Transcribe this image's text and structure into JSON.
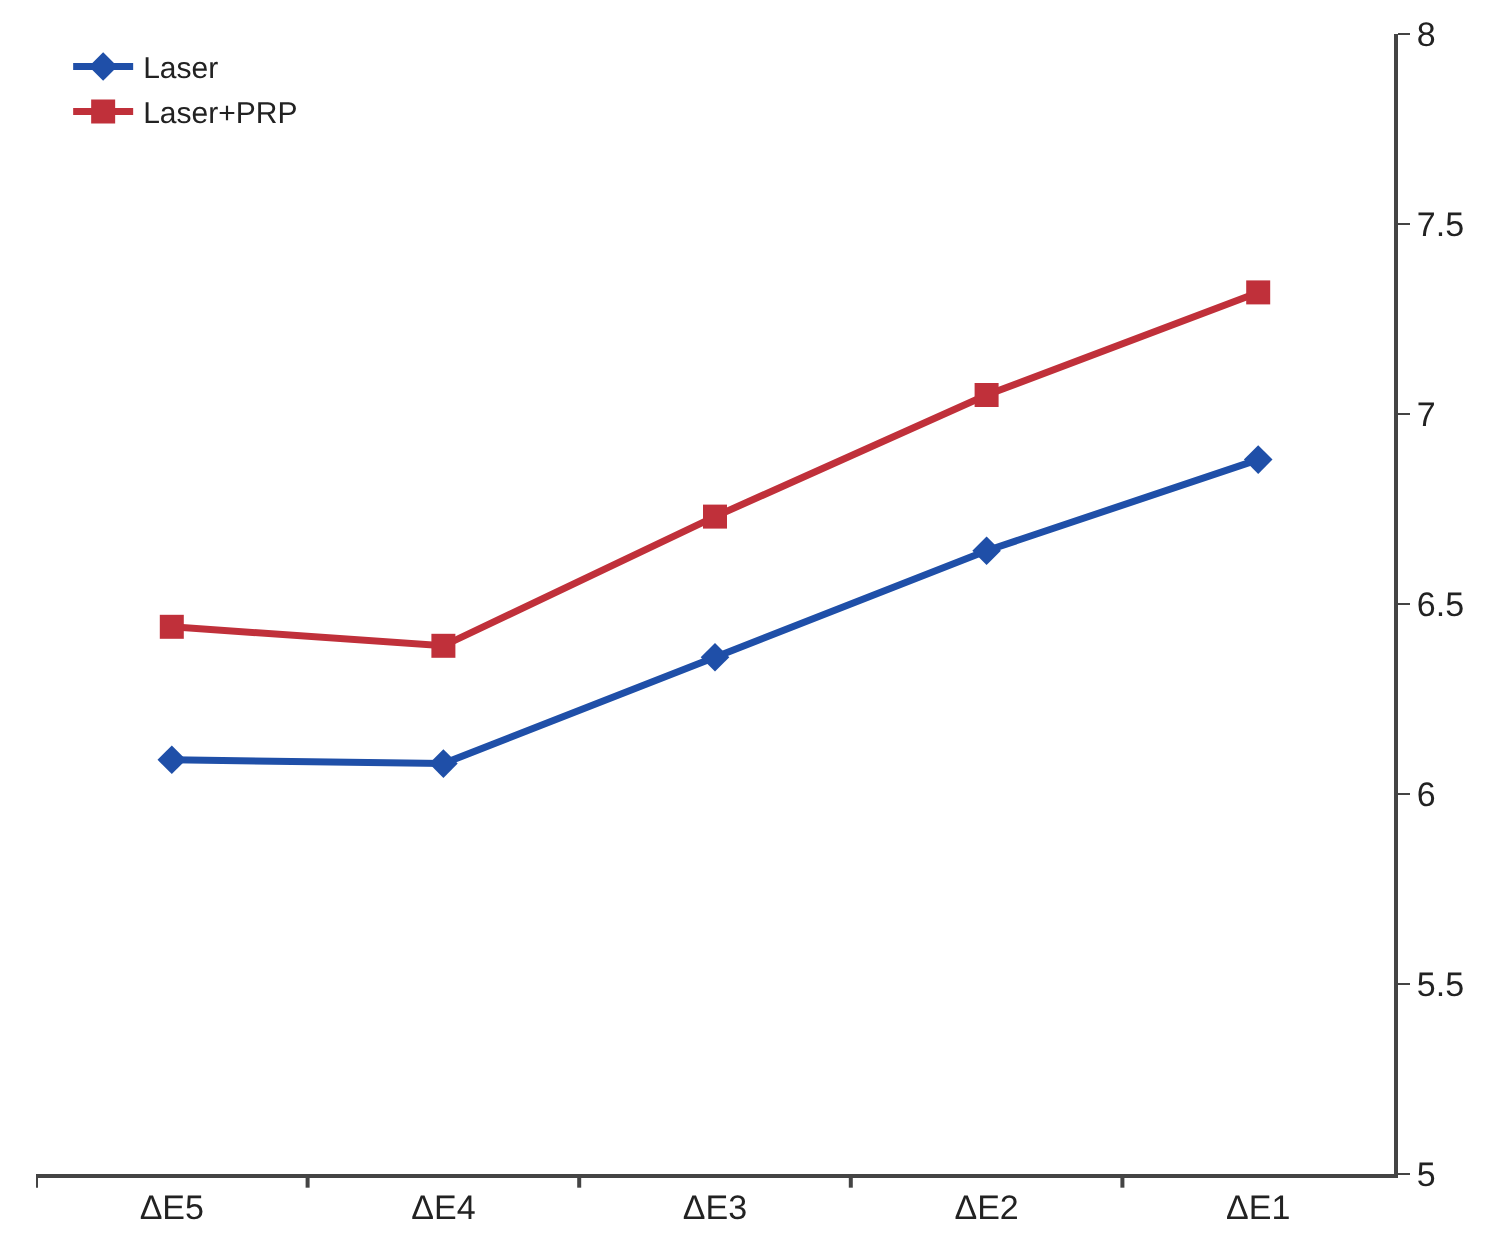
{
  "chart_data": {
    "type": "line",
    "categories": [
      "ΔE5",
      "ΔE4",
      "ΔE3",
      "ΔE2",
      "ΔE1"
    ],
    "series": [
      {
        "name": "Laser",
        "color": "#1f4fa8",
        "marker": "diamond",
        "values": [
          6.09,
          6.08,
          6.36,
          6.64,
          6.88
        ]
      },
      {
        "name": "Laser+PRP",
        "color": "#c0303a",
        "marker": "square",
        "values": [
          6.44,
          6.39,
          6.73,
          7.05,
          7.32
        ]
      }
    ],
    "ylim": [
      5,
      8
    ],
    "yticks": [
      5,
      5.5,
      6,
      6.5,
      7,
      7.5,
      8
    ],
    "grid": false,
    "legend": "top left",
    "line_style": "solid"
  }
}
